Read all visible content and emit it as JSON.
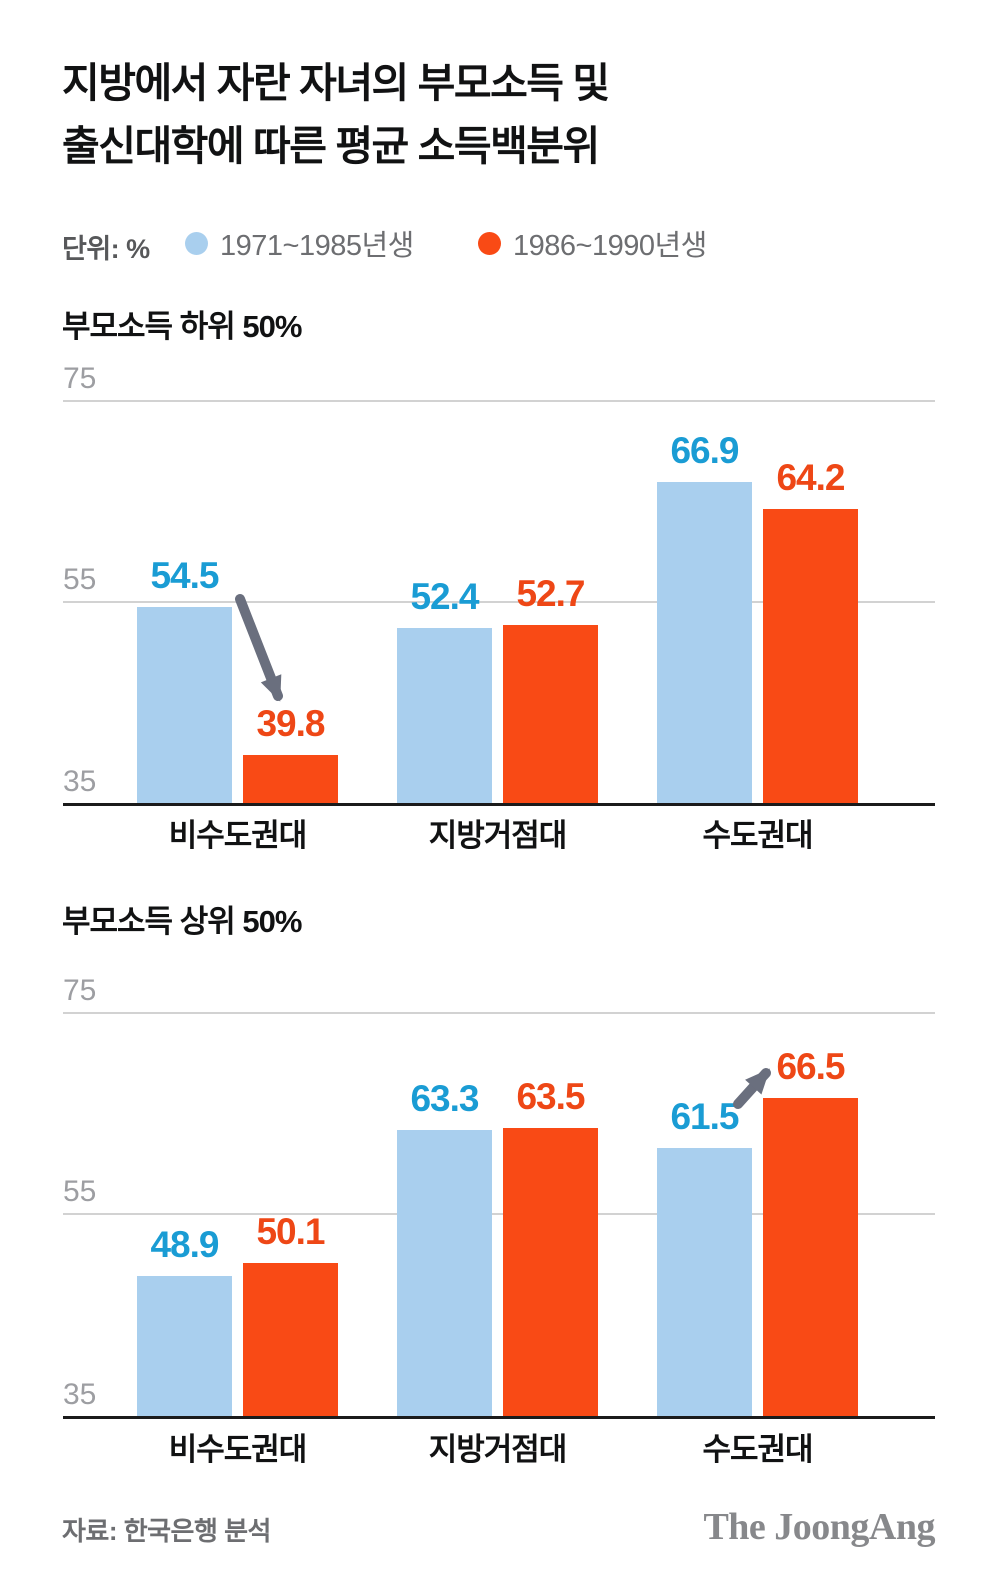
{
  "page": {
    "title_lines": [
      "지방에서 자란 자녀의 부모소득 및",
      "출신대학에 따른 평균 소득백분위"
    ],
    "unit_label": "단위: %",
    "source": "자료: 한국은행 분석",
    "brand": "The JoongAng"
  },
  "legend": [
    {
      "label": "1971~1985년생",
      "color": "#a9cfee"
    },
    {
      "label": "1986~1990년생",
      "color": "#f94a15"
    }
  ],
  "colors": {
    "bar_blue": "#a9cfee",
    "bar_red": "#f94a15",
    "value_blue": "#1a9cd4",
    "value_red": "#ee4716",
    "arrow": "#6a6f7e",
    "axis_text": "#9d9ea2",
    "gridline": "#d2d2d2",
    "baseline": "#1b1b1b"
  },
  "chart_data": [
    {
      "type": "bar",
      "title": "부모소득 하위 50%",
      "unit": "%",
      "categories": [
        "비수도권대",
        "지방거점대",
        "수도권대"
      ],
      "series": [
        {
          "name": "1971~1985년생",
          "values": [
            54.5,
            52.4,
            66.9
          ]
        },
        {
          "name": "1986~1990년생",
          "values": [
            39.8,
            52.7,
            64.2
          ]
        }
      ],
      "yticks": [
        75,
        55,
        35
      ],
      "ylim": [
        35,
        75
      ],
      "grid": "horizontal",
      "legend_position": "top",
      "annotation": "decrease-arrow between 54.5 and 39.8"
    },
    {
      "type": "bar",
      "title": "부모소득 상위 50%",
      "unit": "%",
      "categories": [
        "비수도권대",
        "지방거점대",
        "수도권대"
      ],
      "series": [
        {
          "name": "1971~1985년생",
          "values": [
            48.9,
            63.3,
            61.5
          ]
        },
        {
          "name": "1986~1990년생",
          "values": [
            50.1,
            63.5,
            66.5
          ]
        }
      ],
      "yticks": [
        75,
        55,
        35
      ],
      "ylim": [
        35,
        75
      ],
      "grid": "horizontal",
      "legend_position": "top",
      "annotation": "increase-arrow between 61.5 and 66.5"
    }
  ]
}
